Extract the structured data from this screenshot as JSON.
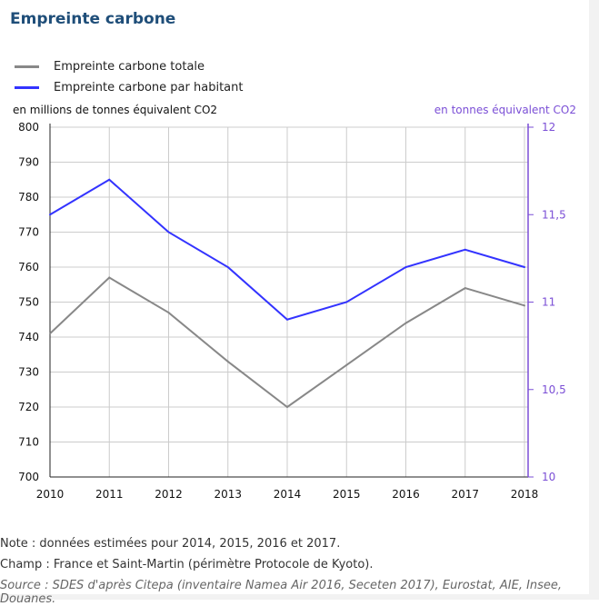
{
  "title": "Empreinte carbone",
  "chart_data": {
    "type": "line",
    "x": [
      2010,
      2011,
      2012,
      2013,
      2014,
      2015,
      2016,
      2017,
      2018
    ],
    "series": [
      {
        "name": "Empreinte carbone totale",
        "axis": "left",
        "color": "#888888",
        "values": [
          741,
          757,
          747,
          733,
          720,
          732,
          744,
          754,
          749
        ]
      },
      {
        "name": "Empreinte carbone par habitant",
        "axis": "right",
        "color": "#3333ff",
        "values": [
          11.5,
          11.7,
          11.4,
          11.2,
          10.9,
          11.0,
          11.2,
          11.3,
          11.2
        ]
      }
    ],
    "ylabel_left": "en millions de tonnes équivalent CO2",
    "ylabel_right": "en tonnes équivalent CO2",
    "ylim_left": [
      700,
      800
    ],
    "ylim_right": [
      10,
      12
    ],
    "yticks_left": [
      "700",
      "710",
      "720",
      "730",
      "740",
      "750",
      "760",
      "770",
      "780",
      "790",
      "800"
    ],
    "yticks_right": [
      "10",
      "10,5",
      "11",
      "11,5",
      "12"
    ],
    "grid": true,
    "legend_position": "top-left",
    "right_axis_color": "#7b4fd6"
  },
  "notes": {
    "note": "Note : données estimées pour 2014, 2015, 2016 et 2017.",
    "champ": "Champ : France et Saint-Martin (périmètre Protocole de Kyoto).",
    "source": "Source : SDES d'après Citepa (inventaire Namea Air 2016, Seceten 2017), Eurostat, AIE, Insee, Douanes."
  }
}
